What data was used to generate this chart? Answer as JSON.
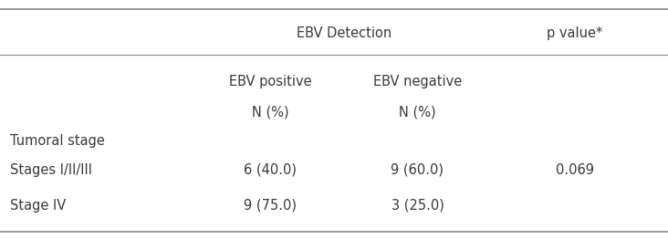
{
  "title_row": {
    "ebv_detection_label": "EBV Detection",
    "p_value_label": "p value*"
  },
  "header_row1": {
    "col2": "EBV positive",
    "col3": "EBV negative"
  },
  "header_row2": {
    "col2": "N (%)",
    "col3": "N (%)"
  },
  "section_label": "Tumoral stage",
  "rows": [
    {
      "label": "Stages I/II/III",
      "ebv_positive": "6 (40.0)",
      "ebv_negative": "9 (60.0)",
      "p_value": "0.069"
    },
    {
      "label": "Stage IV",
      "ebv_positive": "9 (75.0)",
      "ebv_negative": "3 (25.0)",
      "p_value": ""
    }
  ],
  "col_x": {
    "c1": 0.015,
    "c2": 0.345,
    "c3": 0.555,
    "c4": 0.81
  },
  "background_color": "#ffffff",
  "text_color": "#3a3a3a",
  "line_color": "#888888",
  "font_size": 10.5
}
